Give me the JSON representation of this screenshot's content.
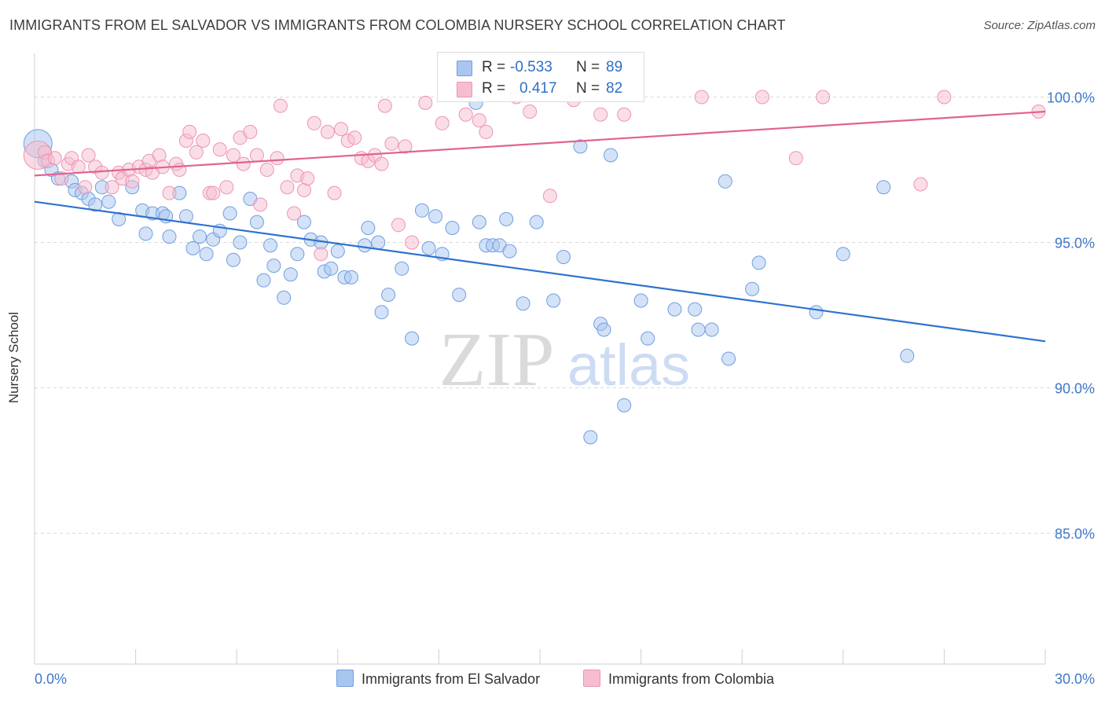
{
  "title": "IMMIGRANTS FROM EL SALVADOR VS IMMIGRANTS FROM COLOMBIA NURSERY SCHOOL CORRELATION CHART",
  "source": "Source: ZipAtlas.com",
  "watermark": {
    "zip": "ZIP",
    "atlas": "atlas"
  },
  "legend_top": {
    "rows": [
      {
        "r_label": "R =",
        "r_value": "-0.533",
        "n_label": "N =",
        "n_value": "89"
      },
      {
        "r_label": "R =",
        "r_value": "0.417",
        "n_label": "N =",
        "n_value": "82"
      }
    ]
  },
  "chart_data": {
    "type": "scatter",
    "ylabel": "Nursery School",
    "x_tick_labels": [
      "0.0%",
      "30.0%"
    ],
    "y_tick_labels": [
      "85.0%",
      "90.0%",
      "95.0%",
      "100.0%"
    ],
    "y_ticks": [
      85,
      90,
      95,
      100
    ],
    "xlim": [
      0,
      30
    ],
    "ylim": [
      80.5,
      101.5
    ],
    "grid": true,
    "legend_position": "bottom",
    "series": [
      {
        "name": "Immigrants from El Salvador",
        "color": "#a9c6f0",
        "stroke": "#6f9fe0",
        "line_color": "#2f72d0",
        "trend": [
          [
            0,
            96.4
          ],
          [
            30,
            91.6
          ]
        ],
        "points": [
          [
            0.1,
            98.4
          ],
          [
            0.3,
            97.8
          ],
          [
            0.5,
            97.5
          ],
          [
            0.7,
            97.2
          ],
          [
            1.1,
            97.1
          ],
          [
            1.2,
            96.8
          ],
          [
            1.4,
            96.7
          ],
          [
            1.6,
            96.5
          ],
          [
            1.8,
            96.3
          ],
          [
            2.0,
            96.9
          ],
          [
            2.2,
            96.4
          ],
          [
            2.5,
            95.8
          ],
          [
            2.9,
            96.9
          ],
          [
            3.2,
            96.1
          ],
          [
            3.5,
            96.0
          ],
          [
            3.3,
            95.3
          ],
          [
            3.8,
            96.0
          ],
          [
            3.9,
            95.9
          ],
          [
            4.0,
            95.2
          ],
          [
            4.3,
            96.7
          ],
          [
            4.5,
            95.9
          ],
          [
            4.7,
            94.8
          ],
          [
            4.9,
            95.2
          ],
          [
            5.1,
            94.6
          ],
          [
            5.3,
            95.1
          ],
          [
            5.5,
            95.4
          ],
          [
            5.8,
            96.0
          ],
          [
            5.9,
            94.4
          ],
          [
            6.1,
            95.0
          ],
          [
            6.4,
            96.5
          ],
          [
            6.6,
            95.7
          ],
          [
            6.8,
            93.7
          ],
          [
            7.0,
            94.9
          ],
          [
            7.1,
            94.2
          ],
          [
            7.4,
            93.1
          ],
          [
            7.6,
            93.9
          ],
          [
            7.8,
            94.6
          ],
          [
            8.0,
            95.7
          ],
          [
            8.2,
            95.1
          ],
          [
            8.5,
            95.0
          ],
          [
            8.6,
            94.0
          ],
          [
            8.8,
            94.1
          ],
          [
            9.0,
            94.7
          ],
          [
            9.2,
            93.8
          ],
          [
            9.4,
            93.8
          ],
          [
            9.8,
            94.9
          ],
          [
            9.9,
            95.5
          ],
          [
            10.2,
            95.0
          ],
          [
            10.3,
            92.6
          ],
          [
            10.5,
            93.2
          ],
          [
            10.9,
            94.1
          ],
          [
            11.2,
            91.7
          ],
          [
            11.5,
            96.1
          ],
          [
            11.7,
            94.8
          ],
          [
            11.9,
            95.9
          ],
          [
            12.1,
            94.6
          ],
          [
            12.4,
            95.5
          ],
          [
            12.6,
            93.2
          ],
          [
            13.1,
            99.8
          ],
          [
            13.2,
            95.7
          ],
          [
            13.4,
            94.9
          ],
          [
            13.6,
            94.9
          ],
          [
            13.8,
            94.9
          ],
          [
            14.0,
            95.8
          ],
          [
            14.1,
            94.7
          ],
          [
            14.5,
            92.9
          ],
          [
            14.9,
            95.7
          ],
          [
            15.4,
            93.0
          ],
          [
            15.7,
            94.5
          ],
          [
            16.2,
            98.3
          ],
          [
            16.5,
            88.3
          ],
          [
            16.8,
            92.2
          ],
          [
            16.9,
            92.0
          ],
          [
            17.1,
            98.0
          ],
          [
            17.5,
            89.4
          ],
          [
            18.0,
            93.0
          ],
          [
            18.2,
            91.7
          ],
          [
            19.0,
            92.7
          ],
          [
            19.6,
            92.7
          ],
          [
            19.7,
            92.0
          ],
          [
            20.1,
            92.0
          ],
          [
            20.5,
            97.1
          ],
          [
            20.6,
            91.0
          ],
          [
            21.3,
            93.4
          ],
          [
            21.5,
            94.3
          ],
          [
            23.2,
            92.6
          ],
          [
            24.0,
            94.6
          ],
          [
            25.2,
            96.9
          ],
          [
            25.9,
            91.1
          ]
        ]
      },
      {
        "name": "Immigrants from Colombia",
        "color": "#f6bdd0",
        "stroke": "#ee94b2",
        "line_color": "#e0638f",
        "trend": [
          [
            0,
            97.3
          ],
          [
            30,
            99.5
          ]
        ],
        "points": [
          [
            0.1,
            98.0
          ],
          [
            0.3,
            98.1
          ],
          [
            0.4,
            97.8
          ],
          [
            0.6,
            97.9
          ],
          [
            0.8,
            97.2
          ],
          [
            1.0,
            97.7
          ],
          [
            1.1,
            97.9
          ],
          [
            1.3,
            97.6
          ],
          [
            1.5,
            96.9
          ],
          [
            1.6,
            98.0
          ],
          [
            1.8,
            97.6
          ],
          [
            2.0,
            97.4
          ],
          [
            2.3,
            96.9
          ],
          [
            2.5,
            97.4
          ],
          [
            2.6,
            97.2
          ],
          [
            2.8,
            97.5
          ],
          [
            2.9,
            97.1
          ],
          [
            3.1,
            97.6
          ],
          [
            3.3,
            97.5
          ],
          [
            3.4,
            97.8
          ],
          [
            3.5,
            97.4
          ],
          [
            3.7,
            98.0
          ],
          [
            3.8,
            97.6
          ],
          [
            4.0,
            96.7
          ],
          [
            4.2,
            97.7
          ],
          [
            4.3,
            97.5
          ],
          [
            4.5,
            98.5
          ],
          [
            4.6,
            98.8
          ],
          [
            4.8,
            98.1
          ],
          [
            5.0,
            98.5
          ],
          [
            5.2,
            96.7
          ],
          [
            5.3,
            96.7
          ],
          [
            5.5,
            98.2
          ],
          [
            5.7,
            96.9
          ],
          [
            5.9,
            98.0
          ],
          [
            6.1,
            98.6
          ],
          [
            6.2,
            97.7
          ],
          [
            6.4,
            98.8
          ],
          [
            6.6,
            98.0
          ],
          [
            6.7,
            96.3
          ],
          [
            6.9,
            97.5
          ],
          [
            7.2,
            97.9
          ],
          [
            7.3,
            99.7
          ],
          [
            7.5,
            96.9
          ],
          [
            7.7,
            96.0
          ],
          [
            7.8,
            97.3
          ],
          [
            8.0,
            96.8
          ],
          [
            8.1,
            97.2
          ],
          [
            8.3,
            99.1
          ],
          [
            8.5,
            94.6
          ],
          [
            8.7,
            98.8
          ],
          [
            8.9,
            96.7
          ],
          [
            9.1,
            98.9
          ],
          [
            9.3,
            98.5
          ],
          [
            9.5,
            98.6
          ],
          [
            9.7,
            97.9
          ],
          [
            9.9,
            97.8
          ],
          [
            10.1,
            98.0
          ],
          [
            10.3,
            97.7
          ],
          [
            10.4,
            99.7
          ],
          [
            10.6,
            98.4
          ],
          [
            10.8,
            95.6
          ],
          [
            11.0,
            98.3
          ],
          [
            11.2,
            95.0
          ],
          [
            11.6,
            99.8
          ],
          [
            12.1,
            99.1
          ],
          [
            12.8,
            99.4
          ],
          [
            13.2,
            99.2
          ],
          [
            13.4,
            98.8
          ],
          [
            14.3,
            100.0
          ],
          [
            14.7,
            99.5
          ],
          [
            15.3,
            96.6
          ],
          [
            16.0,
            99.9
          ],
          [
            16.8,
            99.4
          ],
          [
            17.5,
            99.4
          ],
          [
            19.8,
            100.0
          ],
          [
            21.6,
            100.0
          ],
          [
            22.6,
            97.9
          ],
          [
            23.4,
            100.0
          ],
          [
            26.3,
            97.0
          ],
          [
            27.0,
            100.0
          ],
          [
            29.8,
            99.5
          ]
        ]
      }
    ]
  }
}
